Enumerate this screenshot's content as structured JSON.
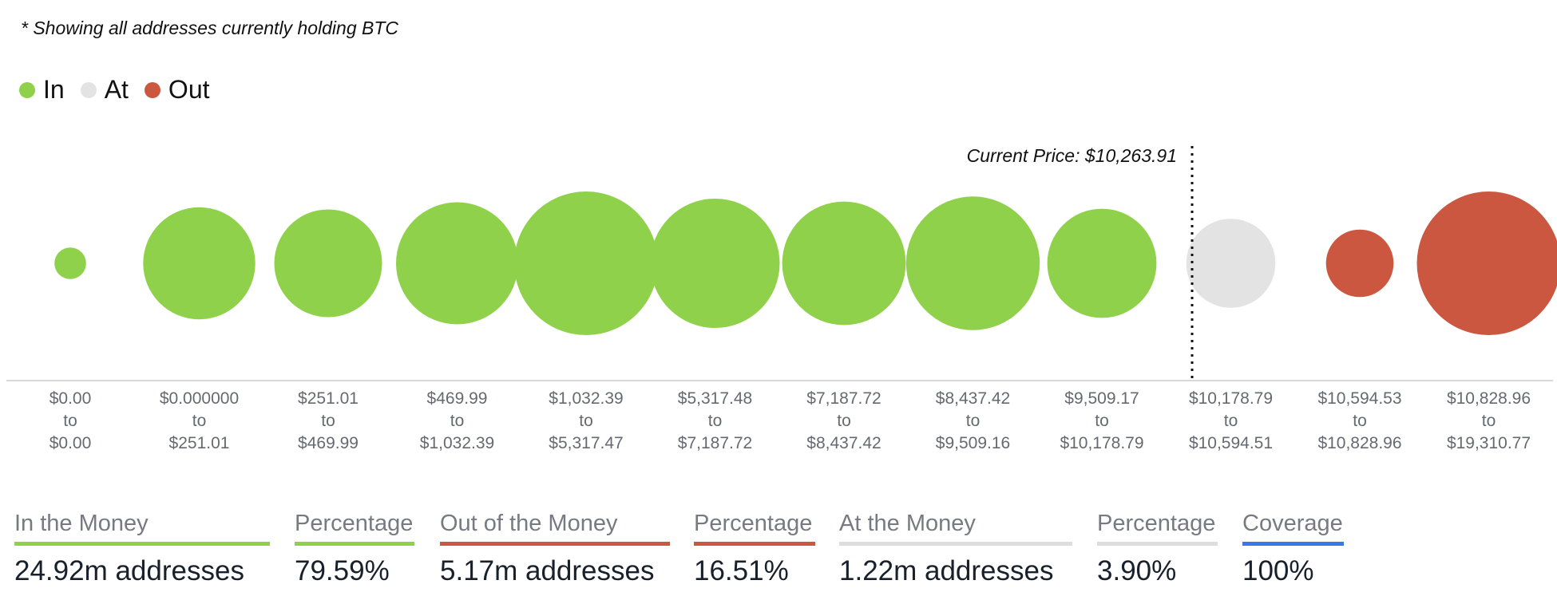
{
  "note": "* Showing all addresses currently holding BTC",
  "legend": {
    "items": [
      {
        "label": "In",
        "color": "#8fd14a"
      },
      {
        "label": "At",
        "color": "#e3e3e3"
      },
      {
        "label": "Out",
        "color": "#cc5740"
      }
    ]
  },
  "chart_data": {
    "type": "bubble",
    "current_price_label": "Current Price: $10,263.91",
    "current_price": 10263.91,
    "bins": [
      {
        "from": "$0.00",
        "to": "$0.00",
        "status": "In",
        "relative_size": 0.22
      },
      {
        "from": "$0.000000",
        "to": "$251.01",
        "status": "In",
        "relative_size": 0.78
      },
      {
        "from": "$251.01",
        "to": "$469.99",
        "status": "In",
        "relative_size": 0.75
      },
      {
        "from": "$469.99",
        "to": "$1,032.39",
        "status": "In",
        "relative_size": 0.85
      },
      {
        "from": "$1,032.39",
        "to": "$5,317.47",
        "status": "In",
        "relative_size": 1.0
      },
      {
        "from": "$5,317.48",
        "to": "$7,187.72",
        "status": "In",
        "relative_size": 0.9
      },
      {
        "from": "$7,187.72",
        "to": "$8,437.42",
        "status": "In",
        "relative_size": 0.86
      },
      {
        "from": "$8,437.42",
        "to": "$9,509.16",
        "status": "In",
        "relative_size": 0.93
      },
      {
        "from": "$9,509.17",
        "to": "$10,178.79",
        "status": "In",
        "relative_size": 0.76
      },
      {
        "from": "$10,178.79",
        "to": "$10,594.51",
        "status": "At",
        "relative_size": 0.62
      },
      {
        "from": "$10,594.53",
        "to": "$10,828.96",
        "status": "Out",
        "relative_size": 0.47
      },
      {
        "from": "$10,828.96",
        "to": "$19,310.77",
        "status": "Out",
        "relative_size": 1.0
      }
    ],
    "connector": "to"
  },
  "stats": [
    {
      "label": "In the Money",
      "value": "24.92m addresses",
      "color": "#8fd14a"
    },
    {
      "label": "Percentage",
      "value": "79.59%",
      "color": "#8fd14a"
    },
    {
      "label": "Out of the Money",
      "value": "5.17m addresses",
      "color": "#cc5740"
    },
    {
      "label": "Percentage",
      "value": "16.51%",
      "color": "#cc5740"
    },
    {
      "label": "At the Money",
      "value": "1.22m addresses",
      "color": "#dddddd"
    },
    {
      "label": "Percentage",
      "value": "3.90%",
      "color": "#dddddd"
    },
    {
      "label": "Coverage",
      "value": "100%",
      "color": "#3b78e7"
    }
  ]
}
